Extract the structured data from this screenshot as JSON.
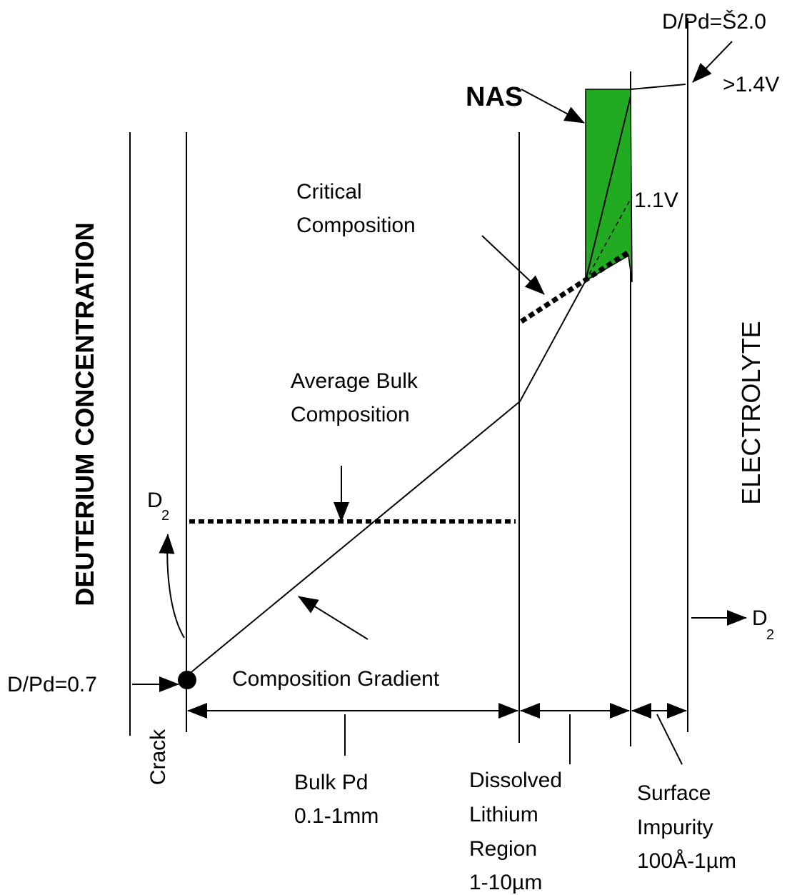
{
  "labels": {
    "top_ratio": "D/Pd=Š2.0",
    "high_voltage": ">1.4V",
    "nas": "NAS",
    "critical": [
      "Critical",
      "Composition"
    ],
    "mid_voltage": "1.1V",
    "left_axis": "DEUTERIUM CONCENTRATION",
    "right_axis": "ELECTROLYTE",
    "average_bulk": [
      "Average Bulk",
      "Composition"
    ],
    "d2_left": {
      "symbol": "D",
      "subscript": "2"
    },
    "d2_right": {
      "symbol": "D",
      "subscript": "2"
    },
    "gradient": "Composition Gradient",
    "bottom_ratio": "D/Pd=0.7",
    "crack": "Crack",
    "bulk_pd": [
      "Bulk Pd",
      "0.1-1mm"
    ],
    "lithium_region": [
      "Dissolved",
      "Lithium",
      "Region",
      "1-10µm"
    ],
    "surface_impurity": [
      "Surface",
      "Impurity",
      "100Å-1µm"
    ]
  }
}
